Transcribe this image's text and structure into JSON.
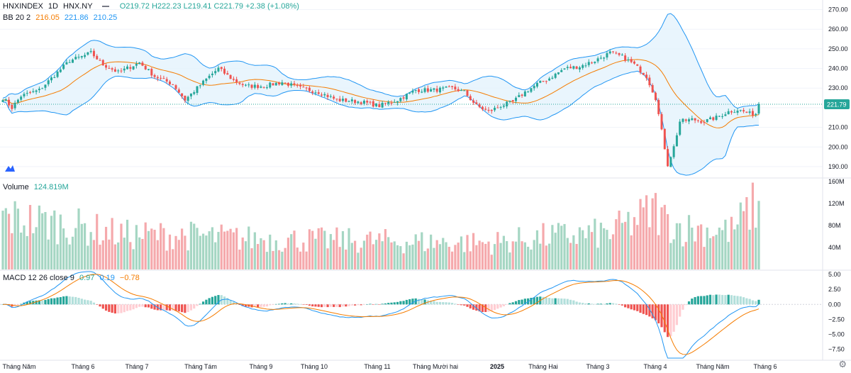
{
  "header": {
    "symbol": "HNXINDEX",
    "interval": "1D",
    "exchange": "HNX.NY",
    "ohlc": "O219.72 H222.23 L219.41 C221.79 +2.38 (+1.08%)"
  },
  "bb_legend": {
    "label": "BB 20 2",
    "middle": "216.05",
    "upper": "221.86",
    "lower": "210.25"
  },
  "volume_legend": {
    "label": "Volume",
    "value": "124.819M"
  },
  "macd_legend": {
    "label": "MACD 12 26 close 9",
    "hist": "0.97",
    "macd": "0.19",
    "signal": "−0.78"
  },
  "colors": {
    "up": "#26a69a",
    "down": "#ef5350",
    "bb": "#2196f3",
    "basis": "#f57c00",
    "band_fill": "#e3f2fd",
    "grid": "#f0f3fa"
  },
  "chart_data": [
    {
      "type": "candlestick",
      "name": "HNXINDEX",
      "x_labels": [
        "Tháng Năm",
        "Tháng 6",
        "Tháng 7",
        "Tháng Tám",
        "Tháng 9",
        "Tháng 10",
        "Tháng 11",
        "Tháng Mười hai",
        "2025",
        "Tháng Hai",
        "Tháng 3",
        "Tháng 4",
        "Tháng Năm",
        "Tháng 6"
      ],
      "y_ticks": [
        190,
        200,
        210,
        220,
        230,
        240,
        250,
        260,
        270
      ],
      "ylim": [
        186,
        272
      ],
      "last_price": "221.79",
      "close_anchors": [
        [
          0,
          225
        ],
        [
          3,
          220
        ],
        [
          6,
          226
        ],
        [
          12,
          229
        ],
        [
          18,
          238
        ],
        [
          22,
          244
        ],
        [
          26,
          246
        ],
        [
          29,
          248
        ],
        [
          33,
          242
        ],
        [
          38,
          238
        ],
        [
          45,
          243
        ],
        [
          50,
          236
        ],
        [
          56,
          232
        ],
        [
          60,
          224
        ],
        [
          64,
          230
        ],
        [
          68,
          236
        ],
        [
          71,
          240
        ],
        [
          76,
          234
        ],
        [
          80,
          231
        ],
        [
          86,
          231
        ],
        [
          92,
          233
        ],
        [
          98,
          230
        ],
        [
          104,
          228
        ],
        [
          110,
          224
        ],
        [
          118,
          223
        ],
        [
          124,
          221
        ],
        [
          130,
          224
        ],
        [
          136,
          229
        ],
        [
          142,
          229
        ],
        [
          148,
          230
        ],
        [
          152,
          228
        ],
        [
          156,
          221
        ],
        [
          160,
          218
        ],
        [
          164,
          221
        ],
        [
          168,
          223
        ],
        [
          172,
          228
        ],
        [
          176,
          232
        ],
        [
          180,
          235
        ],
        [
          185,
          240
        ],
        [
          190,
          241
        ],
        [
          195,
          244
        ],
        [
          200,
          248
        ],
        [
          204,
          246
        ],
        [
          208,
          242
        ],
        [
          212,
          236
        ],
        [
          215,
          225
        ],
        [
          217,
          208
        ],
        [
          219,
          191
        ],
        [
          221,
          200
        ],
        [
          223,
          213
        ],
        [
          227,
          214
        ],
        [
          231,
          213
        ],
        [
          235,
          215
        ],
        [
          239,
          218
        ],
        [
          242,
          219
        ],
        [
          246,
          217
        ],
        [
          248,
          217
        ],
        [
          249,
          221.79
        ]
      ]
    },
    {
      "type": "bar",
      "name": "Volume",
      "y_ticks": [
        "40M",
        "80M",
        "120M",
        "160M"
      ],
      "ylim": [
        0,
        160
      ],
      "anchors": [
        [
          0,
          95
        ],
        [
          20,
          82
        ],
        [
          40,
          63
        ],
        [
          60,
          62
        ],
        [
          80,
          56
        ],
        [
          100,
          54
        ],
        [
          120,
          52
        ],
        [
          140,
          50
        ],
        [
          160,
          48
        ],
        [
          180,
          60
        ],
        [
          200,
          66
        ],
        [
          215,
          108
        ],
        [
          218,
          90
        ],
        [
          224,
          75
        ],
        [
          240,
          70
        ],
        [
          249,
          124.8
        ]
      ]
    },
    {
      "type": "line",
      "name": "MACD",
      "y_ticks": [
        "5.00",
        "2.50",
        "0.00",
        "−2.50",
        "−5.00",
        "−7.50"
      ],
      "ylim": [
        -9,
        5.5
      ]
    }
  ]
}
